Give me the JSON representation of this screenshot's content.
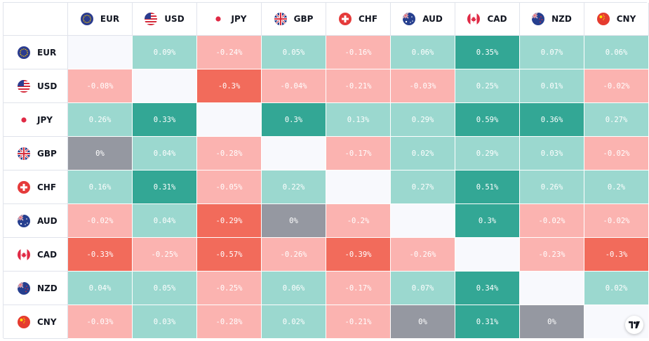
{
  "currencies": [
    "EUR",
    "USD",
    "JPY",
    "GBP",
    "CHF",
    "AUD",
    "CAD",
    "NZD",
    "CNY"
  ],
  "flag_icons": [
    "eu-flag-icon",
    "us-flag-icon",
    "jp-flag-icon",
    "gb-flag-icon",
    "ch-flag-icon",
    "au-flag-icon",
    "ca-flag-icon",
    "nz-flag-icon",
    "cn-flag-icon"
  ],
  "colors": {
    "pos_light": "#9bd8cf",
    "pos_mid": "#62c3b3",
    "pos_strong": "#33a795",
    "neg_light": "#fbb3b0",
    "neg_mid": "#f88b82",
    "neg_strong": "#f26b5b",
    "zero": "#9598a1",
    "empty": "#f8f9fd"
  },
  "matrix": [
    [
      "",
      "0.09%",
      "-0.24%",
      "0.05%",
      "-0.16%",
      "0.06%",
      "0.35%",
      "0.07%",
      "0.06%"
    ],
    [
      "-0.08%",
      "",
      "-0.3%",
      "-0.04%",
      "-0.21%",
      "-0.03%",
      "0.25%",
      "0.01%",
      "-0.02%"
    ],
    [
      "0.26%",
      "0.33%",
      "",
      "0.3%",
      "0.13%",
      "0.29%",
      "0.59%",
      "0.36%",
      "0.27%"
    ],
    [
      "0%",
      "0.04%",
      "-0.28%",
      "",
      "-0.17%",
      "0.02%",
      "0.29%",
      "0.03%",
      "-0.02%"
    ],
    [
      "0.16%",
      "0.31%",
      "-0.05%",
      "0.22%",
      "",
      "0.27%",
      "0.51%",
      "0.26%",
      "0.2%"
    ],
    [
      "-0.02%",
      "0.04%",
      "-0.29%",
      "0%",
      "-0.2%",
      "",
      "0.3%",
      "-0.02%",
      "-0.02%"
    ],
    [
      "-0.33%",
      "-0.25%",
      "-0.57%",
      "-0.26%",
      "-0.39%",
      "-0.26%",
      "",
      "-0.23%",
      "-0.3%"
    ],
    [
      "0.04%",
      "0.05%",
      "-0.25%",
      "0.06%",
      "-0.17%",
      "0.07%",
      "0.34%",
      "",
      "0.02%"
    ],
    [
      "-0.03%",
      "0.03%",
      "-0.28%",
      "0.02%",
      "-0.21%",
      "0%",
      "0.31%",
      "0%",
      ""
    ]
  ],
  "matrix_tones": [
    [
      "empty",
      "pos_light",
      "neg_light",
      "pos_light",
      "neg_light",
      "pos_light",
      "pos_strong",
      "pos_light",
      "pos_light"
    ],
    [
      "neg_light",
      "empty",
      "neg_strong",
      "neg_light",
      "neg_light",
      "neg_light",
      "pos_light",
      "pos_light",
      "neg_light"
    ],
    [
      "pos_light",
      "pos_strong",
      "empty",
      "pos_strong",
      "pos_light",
      "pos_light",
      "pos_strong",
      "pos_strong",
      "pos_light"
    ],
    [
      "zero",
      "pos_light",
      "neg_light",
      "empty",
      "neg_light",
      "pos_light",
      "pos_light",
      "pos_light",
      "neg_light"
    ],
    [
      "pos_light",
      "pos_strong",
      "neg_light",
      "pos_light",
      "empty",
      "pos_light",
      "pos_strong",
      "pos_light",
      "pos_light"
    ],
    [
      "neg_light",
      "pos_light",
      "neg_strong",
      "zero",
      "neg_light",
      "empty",
      "pos_strong",
      "neg_light",
      "neg_light"
    ],
    [
      "neg_strong",
      "neg_light",
      "neg_strong",
      "neg_light",
      "neg_strong",
      "neg_light",
      "empty",
      "neg_light",
      "neg_strong"
    ],
    [
      "pos_light",
      "pos_light",
      "neg_light",
      "pos_light",
      "neg_light",
      "pos_light",
      "pos_strong",
      "empty",
      "pos_light"
    ],
    [
      "neg_light",
      "pos_light",
      "neg_light",
      "pos_light",
      "neg_light",
      "zero",
      "pos_strong",
      "zero",
      "empty"
    ]
  ],
  "logo": "tradingview-logo-icon"
}
